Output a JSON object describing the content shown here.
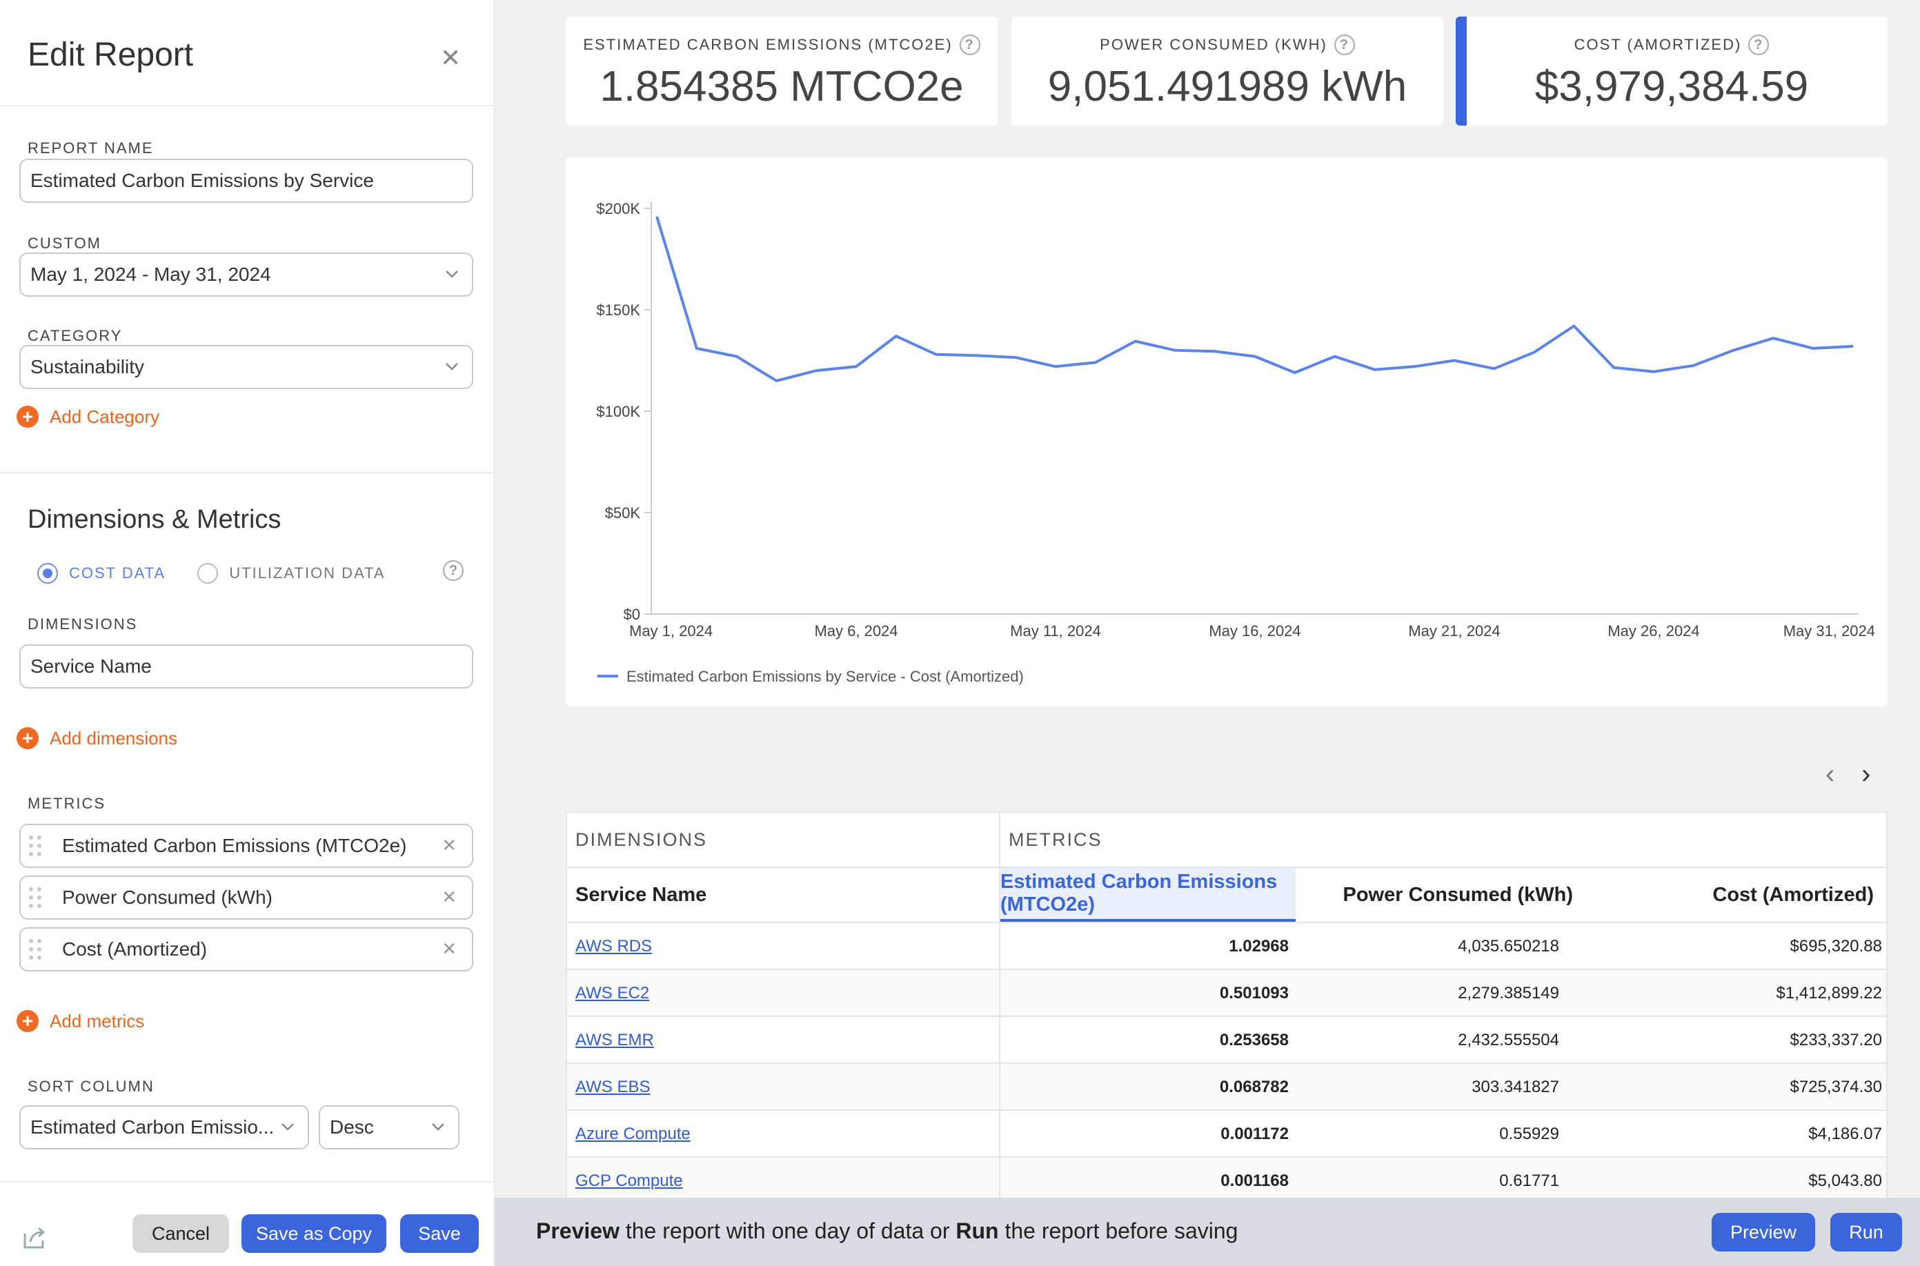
{
  "sidebar": {
    "title": "Edit Report",
    "report_name_label": "REPORT NAME",
    "report_name_value": "Estimated Carbon Emissions by Service",
    "date_label": "CUSTOM",
    "date_value": "May 1, 2024 - May 31, 2024",
    "category_label": "CATEGORY",
    "category_value": "Sustainability",
    "add_category": "Add Category",
    "dimensions_metrics_title": "Dimensions & Metrics",
    "radio_cost": "COST DATA",
    "radio_utilization": "UTILIZATION DATA",
    "dimensions_label": "DIMENSIONS",
    "dimension_value": "Service Name",
    "add_dimensions": "Add dimensions",
    "metrics_label": "METRICS",
    "metrics": [
      "Estimated Carbon Emissions (MTCO2e)",
      "Power Consumed (kWh)",
      "Cost (Amortized)"
    ],
    "add_metrics": "Add metrics",
    "sort_label": "SORT COLUMN",
    "sort_value": "Estimated Carbon Emissio...",
    "sort_order": "Desc",
    "cancel": "Cancel",
    "save_copy": "Save as Copy",
    "save": "Save"
  },
  "kpis": [
    {
      "label": "ESTIMATED CARBON EMISSIONS (MTCO2E)",
      "value": "1.854385 MTCO2e"
    },
    {
      "label": "POWER CONSUMED (KWH)",
      "value": "9,051.491989 kWh"
    },
    {
      "label": "COST (AMORTIZED)",
      "value": "$3,979,384.59"
    }
  ],
  "chart_data": {
    "type": "line",
    "title": "",
    "xlabel": "",
    "ylabel": "",
    "ylim": [
      0,
      200000
    ],
    "y_ticks": [
      "$0",
      "$50K",
      "$100K",
      "$150K",
      "$200K"
    ],
    "x_ticks": [
      "May 1, 2024",
      "May 6, 2024",
      "May 11, 2024",
      "May 16, 2024",
      "May 21, 2024",
      "May 26, 2024",
      "May 31, 2024"
    ],
    "legend_position": "bottom-left",
    "series": [
      {
        "name": "Estimated Carbon Emissions by Service - Cost (Amortized)",
        "color": "#5b84e8",
        "x": [
          "2024-05-01",
          "2024-05-02",
          "2024-05-03",
          "2024-05-04",
          "2024-05-05",
          "2024-05-06",
          "2024-05-07",
          "2024-05-08",
          "2024-05-09",
          "2024-05-10",
          "2024-05-11",
          "2024-05-12",
          "2024-05-13",
          "2024-05-14",
          "2024-05-15",
          "2024-05-16",
          "2024-05-17",
          "2024-05-18",
          "2024-05-19",
          "2024-05-20",
          "2024-05-21",
          "2024-05-22",
          "2024-05-23",
          "2024-05-24",
          "2024-05-25",
          "2024-05-26",
          "2024-05-27",
          "2024-05-28",
          "2024-05-29",
          "2024-05-30",
          "2024-05-31"
        ],
        "values": [
          196000,
          131000,
          127000,
          115000,
          120000,
          122000,
          137000,
          128000,
          127500,
          126500,
          122000,
          124000,
          134500,
          130000,
          129500,
          127000,
          119000,
          127000,
          120500,
          122000,
          125000,
          121000,
          129000,
          142000,
          121500,
          119500,
          122500,
          130000,
          136000,
          131000,
          132000
        ]
      }
    ]
  },
  "pager": {
    "prev": "‹",
    "next": "›"
  },
  "table": {
    "group_dimensions": "DIMENSIONS",
    "group_metrics": "METRICS",
    "columns": [
      "Service Name",
      "Estimated Carbon Emissions (MTCO2e)",
      "Power Consumed (kWh)",
      "Cost (Amortized)"
    ],
    "rows": [
      [
        "AWS RDS",
        "1.02968",
        "4,035.650218",
        "$695,320.88"
      ],
      [
        "AWS EC2",
        "0.501093",
        "2,279.385149",
        "$1,412,899.22"
      ],
      [
        "AWS EMR",
        "0.253658",
        "2,432.555504",
        "$233,337.20"
      ],
      [
        "AWS EBS",
        "0.068782",
        "303.341827",
        "$725,374.30"
      ],
      [
        "Azure Compute",
        "0.001172",
        "0.55929",
        "$4,186.07"
      ],
      [
        "GCP Compute",
        "0.001168",
        "0.61771",
        "$5,043.80"
      ]
    ]
  },
  "bottom_bar": {
    "word_preview": "Preview",
    "text_1": " the report with one day of data or ",
    "word_run": "Run",
    "text_2": " the report before saving",
    "preview_btn": "Preview",
    "run_btn": "Run"
  }
}
